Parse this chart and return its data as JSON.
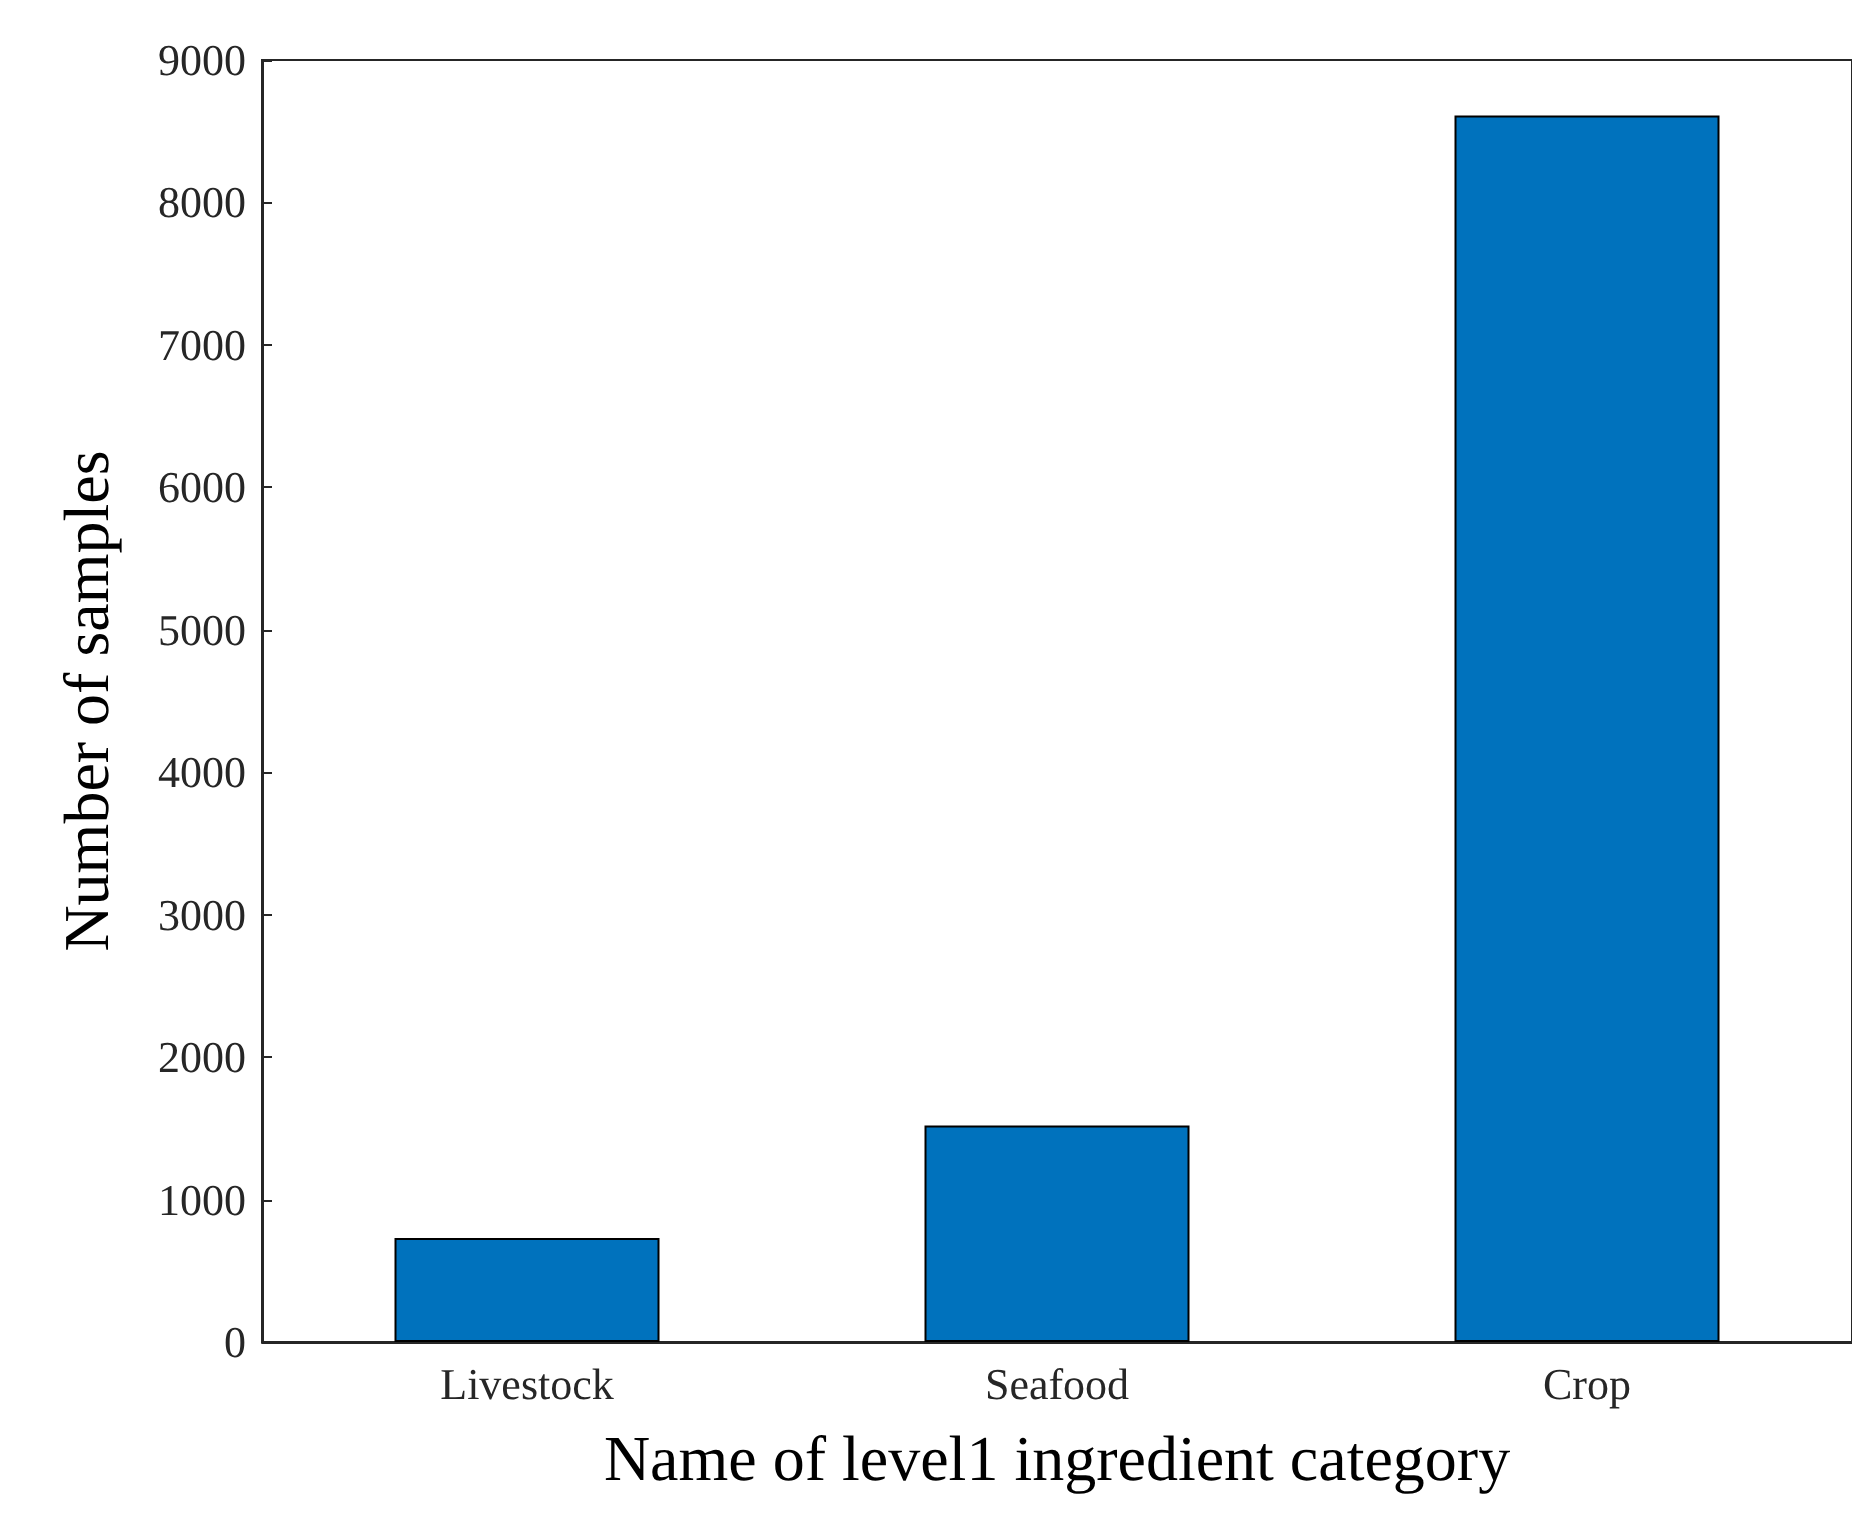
{
  "chart_data": {
    "type": "bar",
    "xlabel": "Name of level1 ingredient category",
    "ylabel": "Number of samples",
    "categories": [
      "Livestock",
      "Seafood",
      "Crop"
    ],
    "values": [
      730,
      1520,
      8610
    ],
    "color": "#0072bd",
    "ylim": [
      0,
      9000
    ],
    "yticks": [
      0,
      1000,
      2000,
      3000,
      4000,
      5000,
      6000,
      7000,
      8000,
      9000
    ],
    "grid": false
  }
}
